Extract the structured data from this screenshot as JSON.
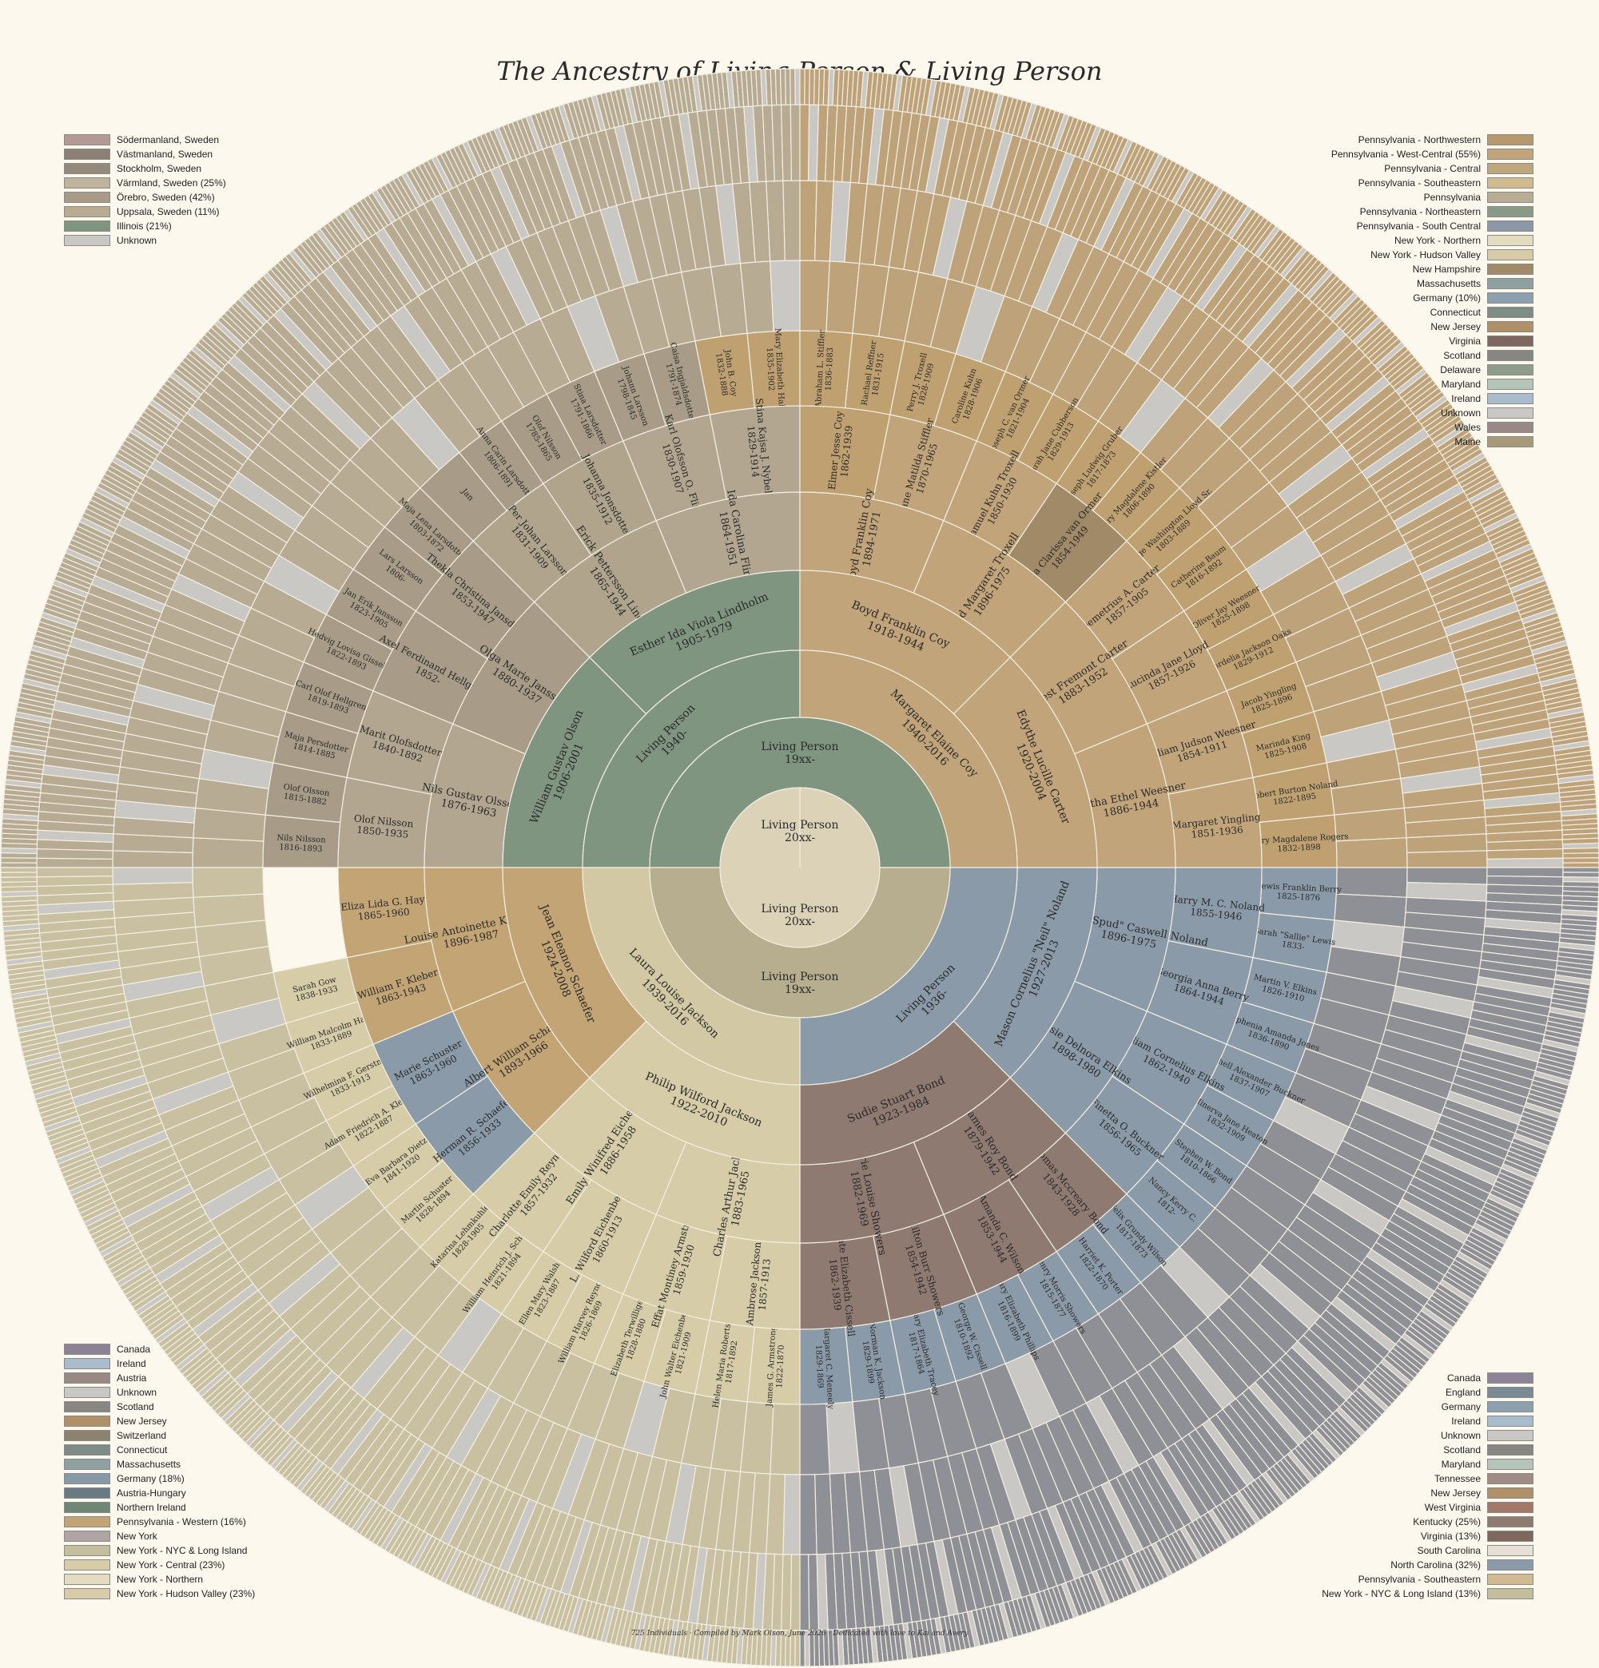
{
  "title": "The Ancestry of Living Person & Living Person",
  "footer": "725 Individuals · Compiled by Mark Olson, June 2026 · Dedicated with love to Kai and Avery",
  "colors": {
    "sweden_base": "#a89c88",
    "us_tan": "#b9a07a",
    "illinois_green": "#7f9580",
    "ny_cream": "#d2c8a4",
    "nj_tan": "#c3a475",
    "germany_blue": "#8798a6",
    "brown": "#8c7870",
    "unknown": "#cac8c4"
  },
  "center": {
    "top": {
      "name": "Living Person",
      "dates": "20xx-"
    },
    "bottom": {
      "name": "Living Person",
      "dates": "20xx-"
    }
  },
  "ring1": [
    {
      "name": "Living Person",
      "dates": "19xx-",
      "color": "#7f9580"
    },
    {
      "name": "Living Person",
      "dates": "19xx-",
      "color": "#b6ae8e"
    }
  ],
  "ring2": [
    {
      "name": "Living Person",
      "dates": "1940-",
      "color": "#7f9580"
    },
    {
      "name": "Margaret Elaine Coy",
      "dates": "1940-2016",
      "color": "#c1a47a"
    },
    {
      "name": "Living Person",
      "dates": "1936-",
      "color": "#8b9aa8"
    },
    {
      "name": "Laura Louise Jackson",
      "dates": "1939-2016",
      "color": "#d2c8a4"
    }
  ],
  "ring3": [
    {
      "name": "William Gustav Olson",
      "dates": "1906-2001",
      "color": "#7f9580"
    },
    {
      "name": "Esther Ida Viola Lindholm",
      "dates": "1905-1979",
      "color": "#7f9580"
    },
    {
      "name": "Boyd Franklin Coy",
      "dates": "1918-1944",
      "color": "#c1a47a"
    },
    {
      "name": "Edythe Lucille Carter",
      "dates": "1920-2004",
      "color": "#c1a47a"
    },
    {
      "name": "Mason Cornelius \"Neil\" Noland",
      "dates": "1927-2013",
      "color": "#8b9aa8"
    },
    {
      "name": "Sudie Stuart Bond",
      "dates": "1923-1984",
      "color": "#8f7a72"
    },
    {
      "name": "Philip Wilford Jackson",
      "dates": "1922-2010",
      "color": "#d6cca8"
    },
    {
      "name": "Jean Eleanor Schaefer",
      "dates": "1924-2008",
      "color": "#c3a475"
    }
  ],
  "ring4": [
    {
      "name": "Nils Gustav Olsson",
      "dates": "1876-1963",
      "color": "#b3a690"
    },
    {
      "name": "Olga Marie Jansson",
      "dates": "1880-1937",
      "color": "#a89c88"
    },
    {
      "name": "Erick Pettersson Lindholm",
      "dates": "1865-1944",
      "color": "#b0a48d"
    },
    {
      "name": "Ida Carolina Flink",
      "dates": "1864-1951",
      "color": "#b3a690"
    },
    {
      "name": "Boyd Franklin Coy",
      "dates": "1894-1971",
      "color": "#c1a47a"
    },
    {
      "name": "Floyd Margaret Troxell",
      "dates": "1896-1975",
      "color": "#c1a47a"
    },
    {
      "name": "Ernest Fremont Carter",
      "dates": "1883-1952",
      "color": "#c1a47a"
    },
    {
      "name": "Bertha Ethel Weesner",
      "dates": "1886-1944",
      "color": "#c1a47a"
    },
    {
      "name": "Harry \"Spud\" Caswell Noland",
      "dates": "1896-1975",
      "color": "#8b9aa8"
    },
    {
      "name": "Bessie Delnora Elkins",
      "dates": "1898-1980",
      "color": "#8b9aa8"
    },
    {
      "name": "James Roy Bond",
      "dates": "1879-1942",
      "color": "#8f7a72"
    },
    {
      "name": "Carrie Louise Showers",
      "dates": "1882-1969",
      "color": "#8f7a72"
    },
    {
      "name": "Charles Arthur Jackson",
      "dates": "1883-1965",
      "color": "#d6cca8"
    },
    {
      "name": "Emily Winifred Eichenberg",
      "dates": "1886-1958",
      "color": "#d6cca8"
    },
    {
      "name": "Albert William Schaefer",
      "dates": "1893-1966",
      "color": "#c3a475"
    },
    {
      "name": "Louise Antoinette Kleber",
      "dates": "1896-1987",
      "color": "#c3a475"
    }
  ],
  "ring5": [
    {
      "name": "Olof Nilsson",
      "dates": "1850-1935",
      "color": "#b3a690"
    },
    {
      "name": "Marit Olofsdotter",
      "dates": "1840-1892",
      "color": "#b3a690"
    },
    {
      "name": "Axel Ferdinand Hellgren",
      "dates": "1852-",
      "color": "#a89c88"
    },
    {
      "name": "Thekla Christina Jansdotter",
      "dates": "1853-1947",
      "color": "#a89c88"
    },
    {
      "name": "Per Johan Larsson",
      "dates": "1831-1909",
      "color": "#b0a48d"
    },
    {
      "name": "Johanna Jonsdotter",
      "dates": "1835-1912",
      "color": "#b0a48d"
    },
    {
      "name": "Karl Olofsson O. Flink",
      "dates": "1830-1907",
      "color": "#b3a690"
    },
    {
      "name": "Stina Kajsa J. Nybelin",
      "dates": "1829-1914",
      "color": "#b3a690"
    },
    {
      "name": "Elmer Jesse Coy",
      "dates": "1862-1939",
      "color": "#bfa070"
    },
    {
      "name": "Jane Matilda Stiffler",
      "dates": "1870-1965",
      "color": "#c1a47a"
    },
    {
      "name": "Samuel Kuhn Troxell",
      "dates": "1850-1930",
      "color": "#c1a47a"
    },
    {
      "name": "Viola Clarissa van Ormer",
      "dates": "1854-1949",
      "color": "#a08a68"
    },
    {
      "name": "Demetrius A. Carter",
      "dates": "1857-1905",
      "color": "#c1a47a"
    },
    {
      "name": "Lucinda Jane Lloyd",
      "dates": "1857-1926",
      "color": "#c1a47a"
    },
    {
      "name": "William Judson Weesner",
      "dates": "1854-1911",
      "color": "#c1a47a"
    },
    {
      "name": "Margaret Yingling",
      "dates": "1851-1936",
      "color": "#c1a47a"
    },
    {
      "name": "Harry M. C. Noland",
      "dates": "1855-1946",
      "color": "#8b9aa8"
    },
    {
      "name": "Georgia Anna Berry",
      "dates": "1864-1944",
      "color": "#8b9aa8"
    },
    {
      "name": "William Cornelius Elkins",
      "dates": "1862-1940",
      "color": "#8b9aa8"
    },
    {
      "name": "Finetta O. Buckner",
      "dates": "1856-1965",
      "color": "#8b9aa8"
    },
    {
      "name": "Thomas Mccreary Bond",
      "dates": "1843-1928",
      "color": "#8f7a72"
    },
    {
      "name": "Amanda C. Wilson",
      "dates": "1853-1944",
      "color": "#8f7a72"
    },
    {
      "name": "Milton Burr Showers",
      "dates": "1854-1942",
      "color": "#8f7a72"
    },
    {
      "name": "Kate Elizabeth Cissell",
      "dates": "1862-1939",
      "color": "#8f7a72"
    },
    {
      "name": "Ambrose Jackson",
      "dates": "1857-1913",
      "color": "#d6cca8"
    },
    {
      "name": "Effat Montiney Armstrong",
      "dates": "1859-1930",
      "color": "#d6cca8"
    },
    {
      "name": "L. Wilford Eichenberg",
      "dates": "1860-1913",
      "color": "#d6cca8"
    },
    {
      "name": "Charlotte Emily Reynolds",
      "dates": "1857-1932",
      "color": "#d6cca8"
    },
    {
      "name": "Herman R. Schaefer",
      "dates": "1856-1933",
      "color": "#8b9aa8"
    },
    {
      "name": "Marie Schuster",
      "dates": "1863-1960",
      "color": "#8b9aa8"
    },
    {
      "name": "William F. Kleber",
      "dates": "1863-1943",
      "color": "#c3a475"
    },
    {
      "name": "Eliza Lida G. Hay",
      "dates": "1865-1960",
      "color": "#c3a475"
    }
  ],
  "ring6": [
    {
      "name": "Nils Nilsson",
      "dates": "1816-1893"
    },
    {
      "name": "Olof Olsson",
      "dates": "1815-1882"
    },
    {
      "name": "Maja Persdotter",
      "dates": "1814-1885"
    },
    {
      "name": "Carl Olof Hellgren",
      "dates": "1819-1893"
    },
    {
      "name": "Hedvig Lovisa Gisselin",
      "dates": "1822-1893"
    },
    {
      "name": "Jan Erik Jansson",
      "dates": "1823-1905"
    },
    {
      "name": "Lars Larsson",
      "dates": "1806-"
    },
    {
      "name": "Maja Lena Larsdotter",
      "dates": "1803-1872"
    },
    {
      "name": "Jan",
      "dates": ""
    },
    {
      "name": "Anna Carin Larsdotter",
      "dates": "1806-1891"
    },
    {
      "name": "Olof Nilsson",
      "dates": "1785-1865"
    },
    {
      "name": "Stina Larsdotter",
      "dates": "1791-1866"
    },
    {
      "name": "Johann Larsson",
      "dates": "1798-1845"
    },
    {
      "name": "Caisa Ingjaldsdotter",
      "dates": "1791-1874"
    },
    {
      "name": "John B. Coy",
      "dates": "1832-1888"
    },
    {
      "name": "Mary Elizabeth Hall",
      "dates": "1835-1902"
    },
    {
      "name": "Abraham L. Stiffler",
      "dates": "1836-1883"
    },
    {
      "name": "Rachael Reffner",
      "dates": "1831-1915"
    },
    {
      "name": "Perry J. Troxell",
      "dates": "1828-1909"
    },
    {
      "name": "Caroline Kuhn",
      "dates": "1828-1906"
    },
    {
      "name": "Joseph C. van Ormer",
      "dates": "1821-1904"
    },
    {
      "name": "Sarah Jane Cubberson",
      "dates": "1829-1913"
    },
    {
      "name": "Joseph Ludwig Gruber",
      "dates": "1817-1873"
    },
    {
      "name": "Mary Magdalene Kistler",
      "dates": "1806-1890"
    },
    {
      "name": "George Washington Lloyd Sr.",
      "dates": "1803-1889"
    },
    {
      "name": "Catherine Baum",
      "dates": "1816-1892"
    },
    {
      "name": "Oliver Jay Weesner",
      "dates": "1825-1898"
    },
    {
      "name": "Cordelia Jackson Oaks",
      "dates": "1829-1912"
    },
    {
      "name": "Jacob Yingling",
      "dates": "1825-1896"
    },
    {
      "name": "Marinda King",
      "dates": "1825-1908"
    },
    {
      "name": "Robert Burton Noland",
      "dates": "1822-1895"
    },
    {
      "name": "Mary Magdalene Rogers",
      "dates": "1832-1898"
    },
    {
      "name": "Lewis Franklin Berry",
      "dates": "1825-1876"
    },
    {
      "name": "Sarah \"Sallie\" Lewis",
      "dates": "1833-"
    },
    {
      "name": "Martin V. Elkins",
      "dates": "1826-1910"
    },
    {
      "name": "Stephenia Amanda Jones",
      "dates": "1836-1890"
    },
    {
      "name": "Mitchell Alexander Buckner",
      "dates": "1837-1907"
    },
    {
      "name": "Minerva Jane Heaton",
      "dates": "1832-1909"
    },
    {
      "name": "Stephen W. Bond",
      "dates": "1810-1866"
    },
    {
      "name": "Nancy Kerry C.",
      "dates": "1812-"
    },
    {
      "name": "Felix Grundy Wilson",
      "dates": "1817-1873"
    },
    {
      "name": "Harriet K. Porter",
      "dates": "1822-1870"
    },
    {
      "name": "Henry Morris Showers",
      "dates": "1815-1877"
    },
    {
      "name": "Mary Elizabeth Phillips",
      "dates": "1816-1899"
    },
    {
      "name": "George W. Cissell",
      "dates": "1810-1892"
    },
    {
      "name": "Mary Elizabeth Tracey",
      "dates": "1817-1864"
    },
    {
      "name": "Norman K. Jackson",
      "dates": "1829-1899"
    },
    {
      "name": "Margaret C. Meneely",
      "dates": "1829-1869"
    },
    {
      "name": "James G. Armstrong",
      "dates": "1822-1870"
    },
    {
      "name": "Helen Maria Robertson",
      "dates": "1817-1892"
    },
    {
      "name": "John Walter Eichenberg",
      "dates": "1821-1909"
    },
    {
      "name": "Elizabeth Terwilliger",
      "dates": "1828-1880"
    },
    {
      "name": "William Harvey Reynolds",
      "dates": "1826-1869"
    },
    {
      "name": "Ellen Mary Walsh",
      "dates": "1823-1887"
    },
    {
      "name": "William Heinrich J. Schaefer",
      "dates": "1821-1894"
    },
    {
      "name": "Katarina Lehmkuhler",
      "dates": "1828-1905"
    },
    {
      "name": "Martin Schuster",
      "dates": "1828-1894"
    },
    {
      "name": "Eva Barbara Dietz",
      "dates": "1841-1920"
    },
    {
      "name": "Adam Friedrich A. Kleber",
      "dates": "1822-1887"
    },
    {
      "name": "Wilhelmina F. Gerstner",
      "dates": "1833-1913"
    },
    {
      "name": "William Malcolm Hay",
      "dates": "1833-1889"
    },
    {
      "name": "Sarah Gow",
      "dates": "1838-1933"
    }
  ],
  "legend_top_left": [
    {
      "label": "Södermanland, Sweden",
      "color": "#b39a96"
    },
    {
      "label": "Västmanland, Sweden",
      "color": "#8c7f76"
    },
    {
      "label": "Stockholm, Sweden",
      "color": "#948a7c"
    },
    {
      "label": "Värmland, Sweden (25%)",
      "color": "#bfb39c"
    },
    {
      "label": "Örebro, Sweden (42%)",
      "color": "#a89c88"
    },
    {
      "label": "Uppsala, Sweden (11%)",
      "color": "#b7ab92"
    },
    {
      "label": "Illinois (21%)",
      "color": "#7f9580"
    },
    {
      "label": "Unknown",
      "color": "#cac8c4"
    }
  ],
  "legend_top_right": [
    {
      "label": "Pennsylvania - Northwestern",
      "color": "#b7996d"
    },
    {
      "label": "Pennsylvania - West-Central (55%)",
      "color": "#c1a47a"
    },
    {
      "label": "Pennsylvania - Central",
      "color": "#bfa67d"
    },
    {
      "label": "Pennsylvania - Southeastern",
      "color": "#d1b990"
    },
    {
      "label": "Pennsylvania",
      "color": "#b8ad93"
    },
    {
      "label": "Pennsylvania - Northeastern",
      "color": "#8a9a88"
    },
    {
      "label": "Pennsylvania - South Central",
      "color": "#8c98a8"
    },
    {
      "label": "New York - Northern",
      "color": "#e4dcc0"
    },
    {
      "label": "New York - Hudson Valley",
      "color": "#d7cba8"
    },
    {
      "label": "New Hampshire",
      "color": "#a08a68"
    },
    {
      "label": "Massachusetts",
      "color": "#8fa0a0"
    },
    {
      "label": "Germany (10%)",
      "color": "#8da0b0"
    },
    {
      "label": "Connecticut",
      "color": "#7d8d86"
    },
    {
      "label": "New Jersey",
      "color": "#b09068"
    },
    {
      "label": "Virginia",
      "color": "#7e675e"
    },
    {
      "label": "Scotland",
      "color": "#888682"
    },
    {
      "label": "Delaware",
      "color": "#8e9c8a"
    },
    {
      "label": "Maryland",
      "color": "#b4c4b8"
    },
    {
      "label": "Ireland",
      "color": "#a8bccc"
    },
    {
      "label": "Unknown",
      "color": "#cac8c4"
    },
    {
      "label": "Wales",
      "color": "#9a8888"
    },
    {
      "label": "Maine",
      "color": "#a89a78"
    }
  ],
  "legend_bottom_left": [
    {
      "label": "Canada",
      "color": "#8e8296"
    },
    {
      "label": "Ireland",
      "color": "#a8bccc"
    },
    {
      "label": "Austria",
      "color": "#9a8884"
    },
    {
      "label": "Unknown",
      "color": "#cac8c4"
    },
    {
      "label": "Scotland",
      "color": "#888682"
    },
    {
      "label": "New Jersey",
      "color": "#b09068"
    },
    {
      "label": "Switzerland",
      "color": "#8c8270"
    },
    {
      "label": "Connecticut",
      "color": "#7d8d86"
    },
    {
      "label": "Massachusetts",
      "color": "#8fa0a0"
    },
    {
      "label": "Germany (18%)",
      "color": "#8798a6"
    },
    {
      "label": "Austria-Hungary",
      "color": "#6a7a82"
    },
    {
      "label": "Northern Ireland",
      "color": "#6d8676"
    },
    {
      "label": "Pennsylvania - Western (16%)",
      "color": "#c3a475"
    },
    {
      "label": "New York",
      "color": "#b0a4a4"
    },
    {
      "label": "New York - NYC & Long Island",
      "color": "#c4be9c"
    },
    {
      "label": "New York - Central (23%)",
      "color": "#d6cca8"
    },
    {
      "label": "New York - Northern",
      "color": "#e4dcc0"
    },
    {
      "label": "New York - Hudson Valley (23%)",
      "color": "#d7cba8"
    }
  ],
  "legend_bottom_right": [
    {
      "label": "Canada",
      "color": "#8e8296"
    },
    {
      "label": "England",
      "color": "#7a8a94"
    },
    {
      "label": "Germany",
      "color": "#8da0b0"
    },
    {
      "label": "Ireland",
      "color": "#a8bccc"
    },
    {
      "label": "Unknown",
      "color": "#cac8c4"
    },
    {
      "label": "Scotland",
      "color": "#888682"
    },
    {
      "label": "Maryland",
      "color": "#b4c4b8"
    },
    {
      "label": "Tennessee",
      "color": "#a08c86"
    },
    {
      "label": "New Jersey",
      "color": "#b09068"
    },
    {
      "label": "West Virginia",
      "color": "#a47868"
    },
    {
      "label": "Kentucky (25%)",
      "color": "#8f7a72"
    },
    {
      "label": "Virginia (13%)",
      "color": "#7e675e"
    },
    {
      "label": "South Carolina",
      "color": "#e8e0d6"
    },
    {
      "label": "North Carolina (32%)",
      "color": "#8b9aa8"
    },
    {
      "label": "Pennsylvania - Southeastern",
      "color": "#d1b990"
    },
    {
      "label": "New York - NYC & Long Island (13%)",
      "color": "#c4be9c"
    }
  ]
}
